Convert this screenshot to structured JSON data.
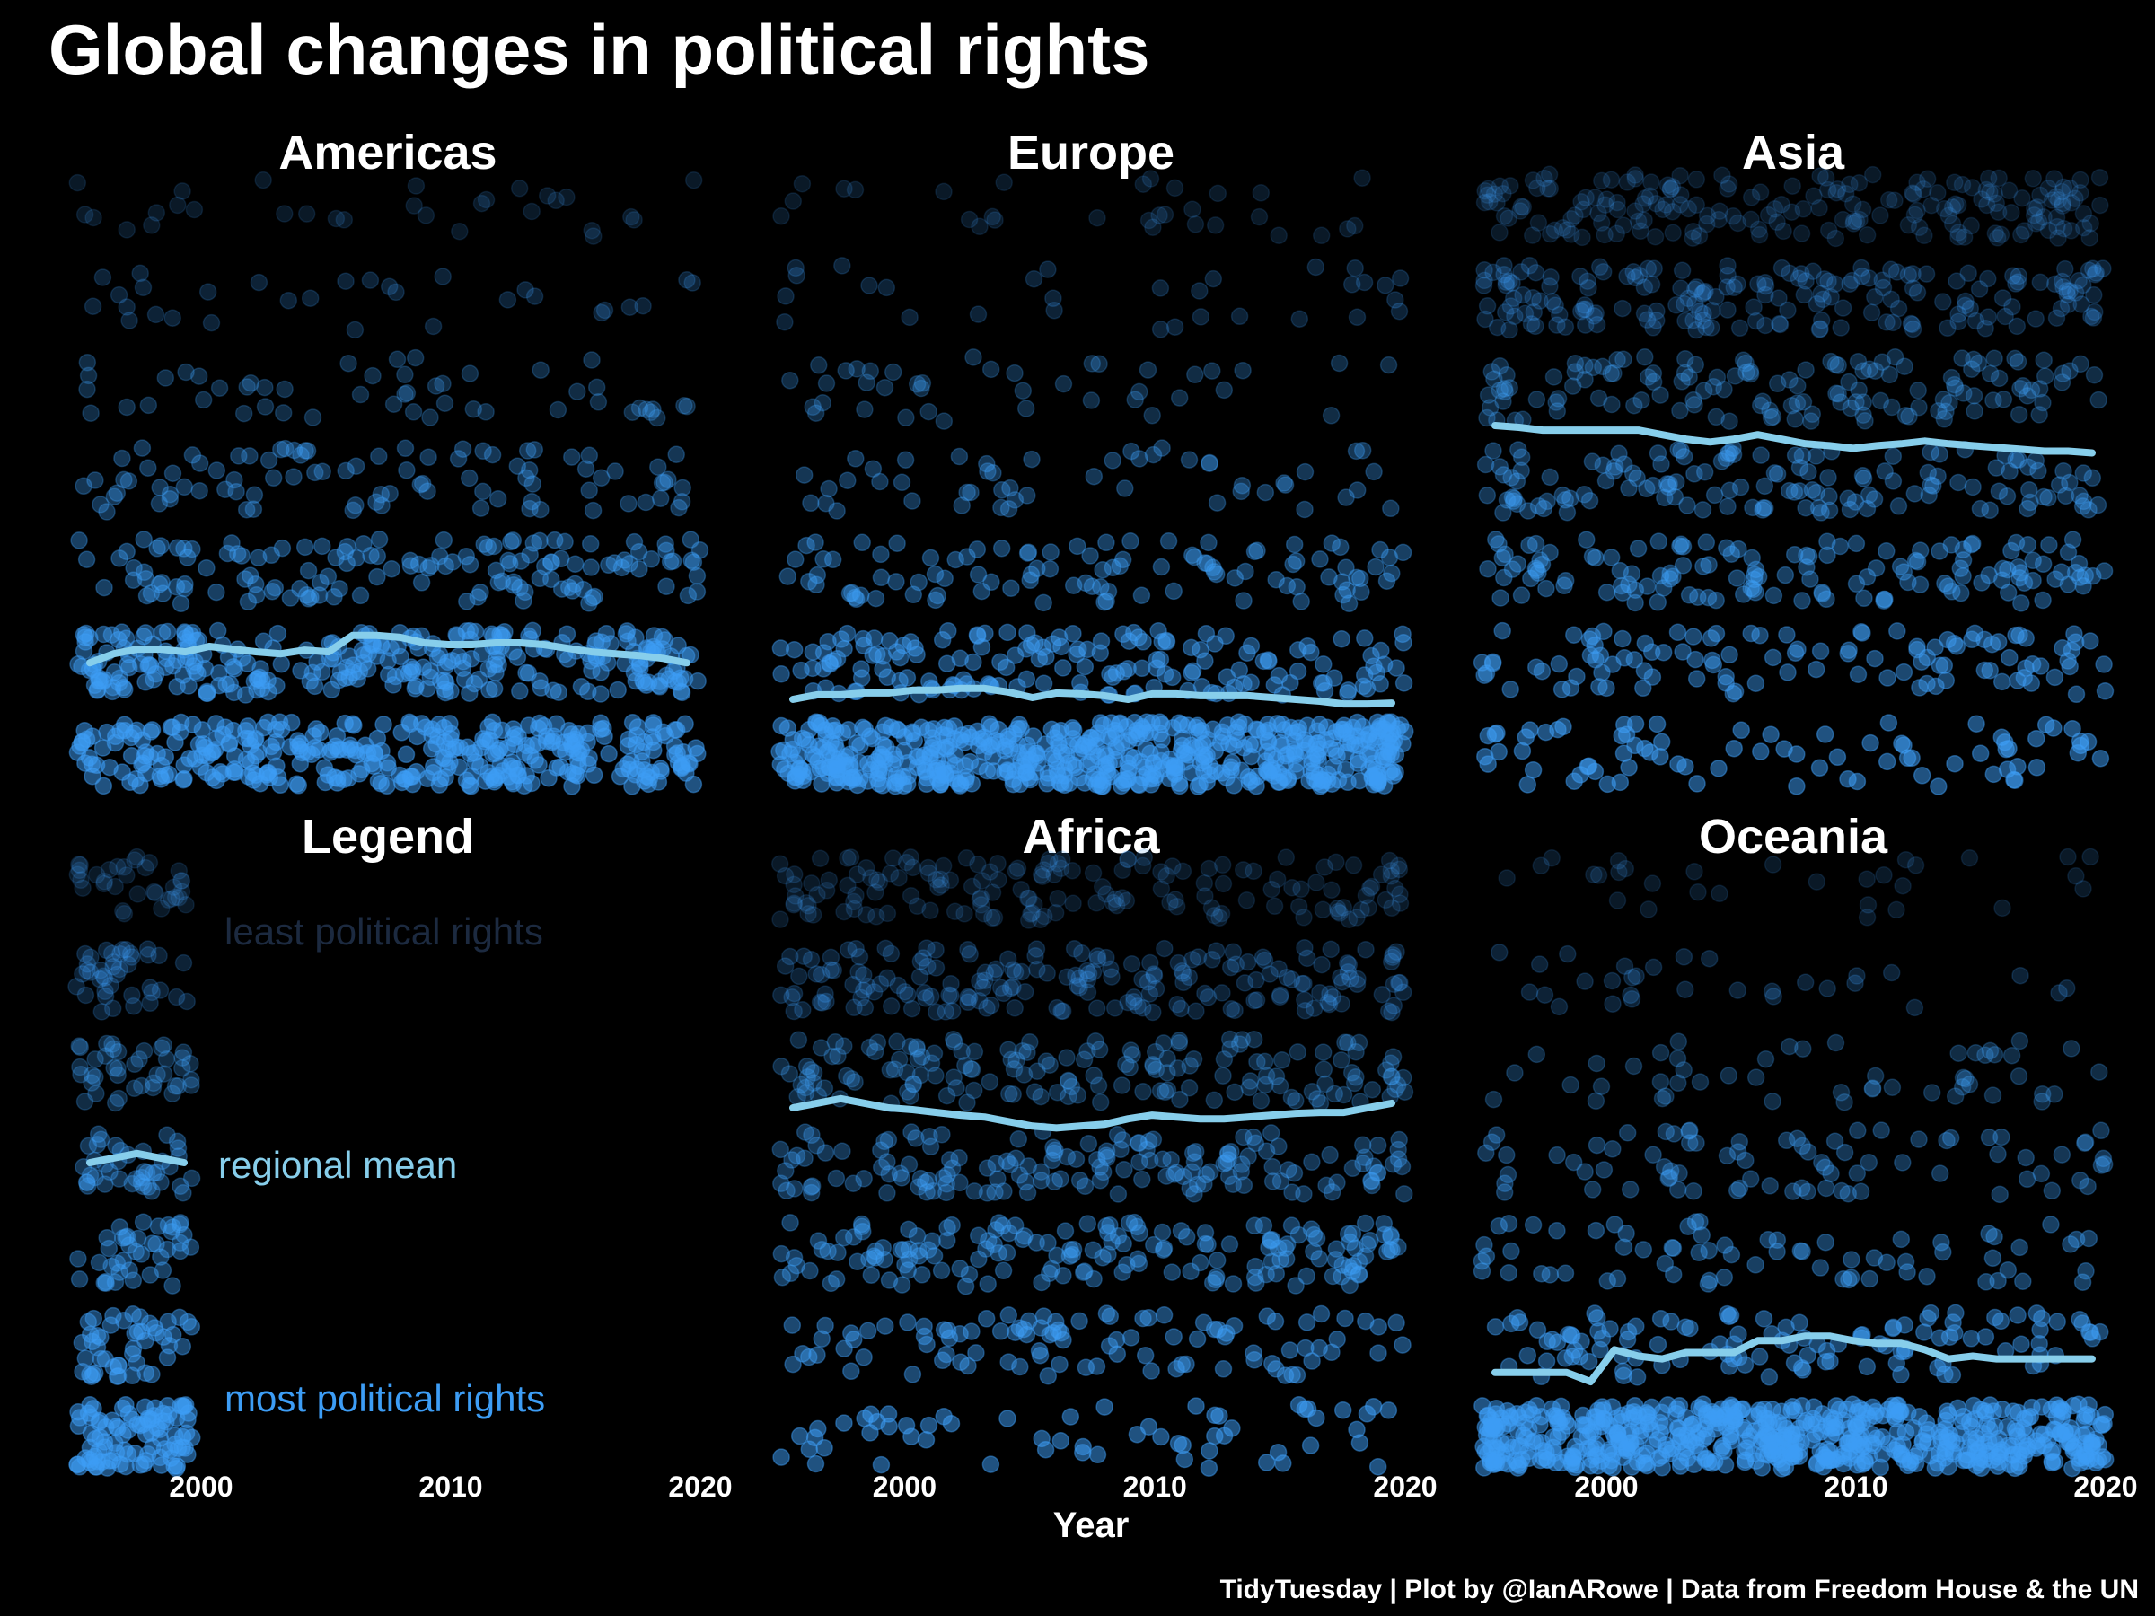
{
  "page": {
    "title": "Global changes in political rights",
    "caption": "TidyTuesday | Plot by @IanARowe | Data from Freedom House & the UN"
  },
  "colors": {
    "background": "#000000",
    "points": "#3d9df5",
    "mean_line": "#87ceeb",
    "text": "#ffffff",
    "legend_least": "#1c2a40",
    "legend_most": "#3d9df5"
  },
  "chart_data": {
    "type": "scatter",
    "note_values": "y is the political rights score: 1 = most political rights, 7 = least political rights; points are jittered country-year observations; line is the regional mean",
    "x_axis": {
      "label": "Year",
      "range": [
        1995,
        2020
      ],
      "ticks": [
        2000,
        2010,
        2020
      ]
    },
    "y_axis": {
      "range": [
        1,
        7
      ],
      "inverted": true,
      "ticks_visible": false
    },
    "grid": false,
    "legend_position": "bottom-left panel",
    "legend": {
      "panel_title": "Legend",
      "least_label": "least political rights",
      "mean_label": "regional mean",
      "most_label": "most political rights"
    },
    "years": [
      1995,
      1996,
      1997,
      1998,
      1999,
      2000,
      2001,
      2002,
      2003,
      2004,
      2005,
      2006,
      2007,
      2008,
      2009,
      2010,
      2011,
      2012,
      2013,
      2014,
      2015,
      2016,
      2017,
      2018,
      2019,
      2020
    ],
    "panels": [
      {
        "region": "Americas",
        "level_weights": [
          0.36,
          0.3,
          0.14,
          0.09,
          0.05,
          0.03,
          0.03
        ],
        "mean": [
          2.0,
          2.1,
          2.15,
          2.15,
          2.12,
          2.18,
          2.15,
          2.12,
          2.1,
          2.14,
          2.12,
          2.3,
          2.3,
          2.28,
          2.22,
          2.2,
          2.2,
          2.22,
          2.22,
          2.2,
          2.16,
          2.12,
          2.1,
          2.08,
          2.05,
          2.0
        ]
      },
      {
        "region": "Europe",
        "level_weights": [
          0.58,
          0.17,
          0.1,
          0.05,
          0.04,
          0.03,
          0.03
        ],
        "mean": [
          1.6,
          1.65,
          1.65,
          1.67,
          1.67,
          1.7,
          1.7,
          1.72,
          1.72,
          1.68,
          1.62,
          1.67,
          1.66,
          1.64,
          1.6,
          1.66,
          1.66,
          1.64,
          1.64,
          1.64,
          1.62,
          1.6,
          1.58,
          1.55,
          1.55,
          1.56
        ]
      },
      {
        "region": "Asia",
        "level_weights": [
          0.08,
          0.11,
          0.14,
          0.14,
          0.14,
          0.19,
          0.2
        ],
        "mean": [
          4.6,
          4.58,
          4.55,
          4.55,
          4.55,
          4.55,
          4.55,
          4.5,
          4.45,
          4.42,
          4.45,
          4.5,
          4.45,
          4.4,
          4.38,
          4.35,
          4.38,
          4.4,
          4.43,
          4.4,
          4.38,
          4.36,
          4.34,
          4.32,
          4.32,
          4.3
        ]
      },
      {
        "region": "Legend",
        "is_legend": true,
        "level_weights": [
          0.28,
          0.14,
          0.12,
          0.12,
          0.12,
          0.12,
          0.1
        ],
        "mean": [
          4.0,
          4.05,
          4.1,
          4.05,
          4.0
        ]
      },
      {
        "region": "Africa",
        "level_weights": [
          0.06,
          0.1,
          0.17,
          0.16,
          0.16,
          0.19,
          0.16
        ],
        "mean": [
          4.6,
          4.65,
          4.7,
          4.65,
          4.6,
          4.58,
          4.55,
          4.52,
          4.5,
          4.45,
          4.4,
          4.38,
          4.4,
          4.42,
          4.48,
          4.52,
          4.5,
          4.48,
          4.48,
          4.5,
          4.52,
          4.54,
          4.55,
          4.55,
          4.6,
          4.65
        ]
      },
      {
        "region": "Oceania",
        "level_weights": [
          0.62,
          0.12,
          0.07,
          0.08,
          0.05,
          0.03,
          0.03
        ],
        "mean": [
          1.7,
          1.7,
          1.7,
          1.7,
          1.6,
          1.95,
          1.88,
          1.85,
          1.92,
          1.92,
          1.92,
          2.05,
          2.05,
          2.1,
          2.1,
          2.05,
          2.02,
          2.02,
          1.95,
          1.85,
          1.88,
          1.85,
          1.85,
          1.85,
          1.85,
          1.85
        ]
      }
    ]
  }
}
